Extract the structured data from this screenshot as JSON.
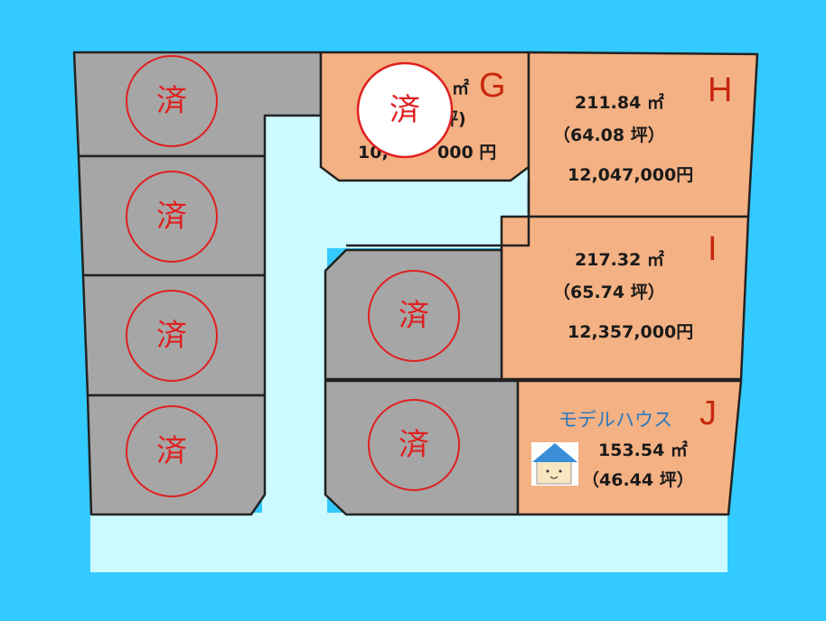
{
  "colors": {
    "background": "#33caff",
    "road": "#ccfaff",
    "sold_lot": "#a6a6a6",
    "available_lot": "#f4b183",
    "sold_mark": "#e02020",
    "lot_letter": "#c8280f",
    "model_house": "#2a78c0"
  },
  "sold_mark": "済",
  "lots": {
    "G": {
      "letter": "G",
      "area_partial": "㎡",
      "tsubo_partial": "坪)",
      "price_left": "10,",
      "price_right": "000 円",
      "status": "sold"
    },
    "H": {
      "letter": "H",
      "area": "211.84 ㎡",
      "tsubo": "（64.08 坪）",
      "price": "12,047,000円"
    },
    "I": {
      "letter": "I",
      "area": "217.32 ㎡",
      "tsubo": "（65.74 坪）",
      "price": "12,357,000円"
    },
    "J": {
      "letter": "J",
      "label": "モデルハウス",
      "area": "153.54 ㎡",
      "tsubo": "（46.44 坪）",
      "icon": "house-icon"
    }
  }
}
